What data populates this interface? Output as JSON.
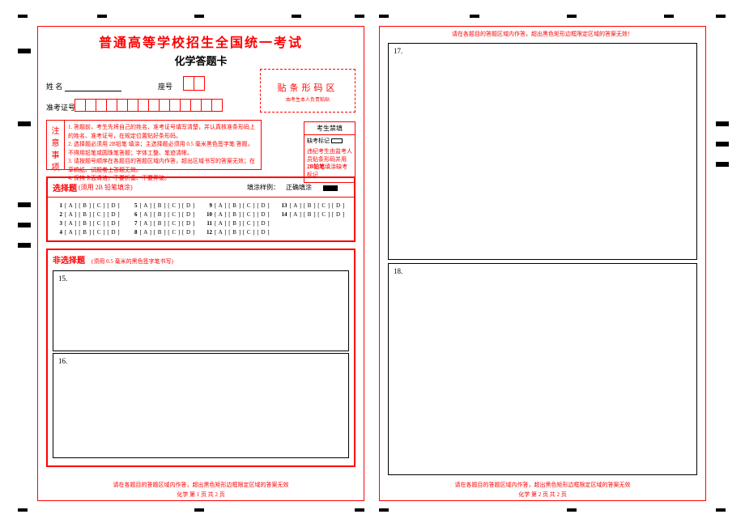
{
  "title_main": "普通高等学校招生全国统一考试",
  "title_sub": "化学答题卡",
  "labels": {
    "name": "姓  名",
    "seat": "座号",
    "exam_id": "准考证号",
    "barcode_title": "贴条形码区",
    "barcode_note": "由考生本人负责粘贴",
    "absent_header": "考生禁填",
    "absent_mark_label": "缺考标记",
    "absent_note_1": "违纪考生由监考人员贴条形码并用",
    "absent_note_2": "2B铅笔",
    "absent_note_3": "填涂缺考标记"
  },
  "notice": {
    "header_chars": [
      "注",
      "意",
      "事",
      "项"
    ],
    "items": [
      "1. 答题前，考生先将自己的姓名、准考证号填写清楚，并认真核准条形码上的姓名、准考证号，在规定位置贴好条形码。",
      "2. 选择题必须用 2B铅笔 填涂；主选择题必须用 0.5 毫米黑色签字笔 答题，不得用铅笔或圆珠笔答题；字体工整、笔迹清晰。",
      "3. 请按题号顺序在各题目的答题区域内作答，超出区域书写的答案无效；在草稿纸、试题卷上答题无效。",
      "4. 保持卡面清洁，不要折叠、不要弄破。"
    ]
  },
  "mc": {
    "title": "选择题",
    "subtitle": "(须用 2B 铅笔填涂)",
    "example_label": "填涂样例：",
    "correct_label": "正确填涂",
    "options_str": "[ A ] [ B ] [ C ] [ D ]",
    "items": [
      {
        "n": "1"
      },
      {
        "n": "5"
      },
      {
        "n": "9"
      },
      {
        "n": "13"
      },
      {
        "n": "2"
      },
      {
        "n": "6"
      },
      {
        "n": "10"
      },
      {
        "n": "14"
      },
      {
        "n": "3"
      },
      {
        "n": "7"
      },
      {
        "n": "11"
      },
      {
        "n": ""
      },
      {
        "n": "4"
      },
      {
        "n": "8"
      },
      {
        "n": "12"
      },
      {
        "n": ""
      }
    ]
  },
  "essay": {
    "title": "非选择题",
    "subtitle": "(须用 0.5 毫米的黑色签字笔书写)",
    "q15": "15.",
    "q16": "16.",
    "q17": "17.",
    "q18": "18."
  },
  "footer": {
    "warn_left": "请在各题目的答题区域内作答，超出黑色矩形边框限定区域的答案无效",
    "warn_right_top": "请在各题目的答题区域内作答，超出黑色矩形边框限定区域的答案无效！",
    "warn_right_bottom": "请在各题目的答题区域内作答，超出黑色矩形边框限定区域的答案无效",
    "page_left": "化学    第 1 页    共 2 页",
    "page_right": "化学    第 2 页    共 2 页"
  },
  "colors": {
    "primary": "#ff0000",
    "text": "#000000",
    "bg": "#ffffff"
  },
  "layout": {
    "seat_cells": 2,
    "id_cells": 14
  }
}
